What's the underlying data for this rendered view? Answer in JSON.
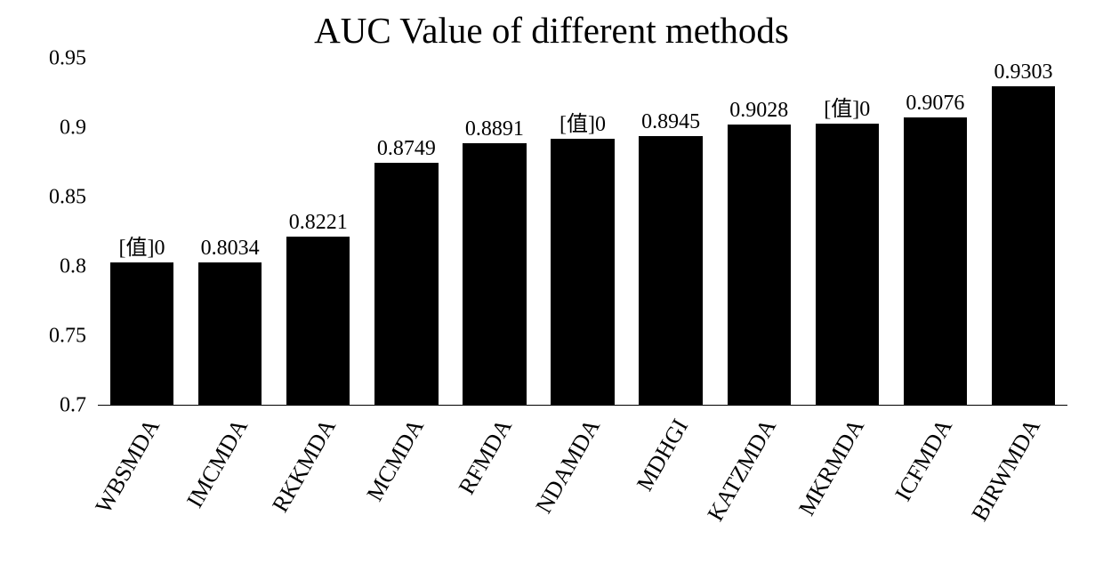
{
  "chart": {
    "type": "bar",
    "title": "AUC Value of different methods",
    "title_fontsize": 41,
    "categories": [
      "WBSMDA",
      "IMCMDA",
      "RKKMDA",
      "MCMDA",
      "RFMDA",
      "NDAMDA",
      "MDHGI",
      "KATZMDA",
      "MKRMDA",
      "ICFMDA",
      "BIRWMDA"
    ],
    "values": [
      0.803,
      0.8034,
      0.8221,
      0.8749,
      0.8891,
      0.892,
      0.8945,
      0.9028,
      0.903,
      0.9076,
      0.9303
    ],
    "data_labels": [
      "[值]0",
      "0.8034",
      "0.8221",
      "0.8749",
      "0.8891",
      "[值]0",
      "0.8945",
      "0.9028",
      "[值]0",
      "0.9076",
      "0.9303"
    ],
    "ylim": [
      0.7,
      0.95
    ],
    "yticks": [
      0.7,
      0.75,
      0.8,
      0.85,
      0.9,
      0.95
    ],
    "bar_color": "#000000",
    "background_color": "#ffffff",
    "text_color": "#000000",
    "label_fontsize": 24,
    "xlabel_fontsize": 26,
    "data_label_fontsize": 24,
    "xlabel_rotation": -60,
    "bar_width": 0.72,
    "grid": false,
    "font_family": "Times New Roman"
  }
}
